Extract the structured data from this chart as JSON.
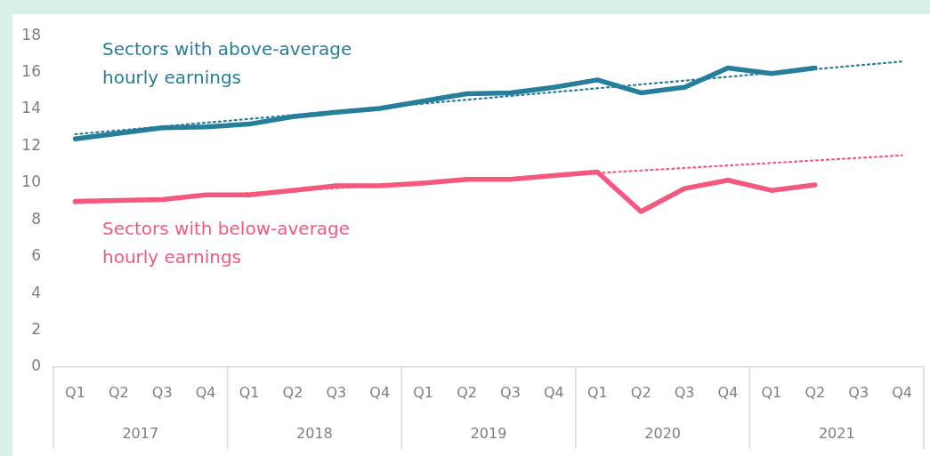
{
  "chart_data": {
    "type": "line",
    "categories": [
      "Q1",
      "Q2",
      "Q3",
      "Q4",
      "Q1",
      "Q2",
      "Q3",
      "Q4",
      "Q1",
      "Q2",
      "Q3",
      "Q4",
      "Q1",
      "Q2",
      "Q3",
      "Q4",
      "Q1",
      "Q2",
      "Q3",
      "Q4"
    ],
    "series": [
      {
        "name": "Sectors with above-average hourly earnings",
        "color": "#267e9a",
        "line_style": "solid",
        "values": [
          12.4,
          12.7,
          13.0,
          13.05,
          13.2,
          13.6,
          13.85,
          14.05,
          14.45,
          14.85,
          14.9,
          15.2,
          15.6,
          14.9,
          15.2,
          16.25,
          15.95,
          16.25,
          null,
          null
        ]
      },
      {
        "name": "Sectors with below-average hourly earnings",
        "color": "#f5587e",
        "line_style": "solid",
        "values": [
          9.0,
          9.05,
          9.1,
          9.35,
          9.35,
          9.6,
          9.85,
          9.85,
          10.0,
          10.2,
          10.2,
          10.4,
          10.6,
          8.45,
          9.7,
          10.15,
          9.6,
          9.9,
          null,
          null
        ]
      },
      {
        "type": "line",
        "color": "#267e9a",
        "line_style": "dotted",
        "values": [
          12.65,
          null,
          null,
          null,
          null,
          null,
          null,
          null,
          null,
          null,
          null,
          null,
          null,
          null,
          null,
          null,
          null,
          null,
          null,
          16.6
        ]
      },
      {
        "type": "line",
        "color": "#f5587e",
        "line_style": "dotted",
        "values": [
          8.9,
          null,
          null,
          null,
          null,
          null,
          null,
          null,
          null,
          null,
          null,
          null,
          null,
          null,
          null,
          null,
          null,
          null,
          null,
          11.5
        ]
      }
    ],
    "annotations": [
      "2017",
      "2018",
      "2019",
      "2020",
      "2021"
    ],
    "ylim": [
      0,
      18
    ],
    "yticks": [
      0,
      2,
      4,
      6,
      8,
      10,
      12,
      14,
      16,
      18
    ],
    "grid": false,
    "legend": false,
    "marker": "none"
  }
}
